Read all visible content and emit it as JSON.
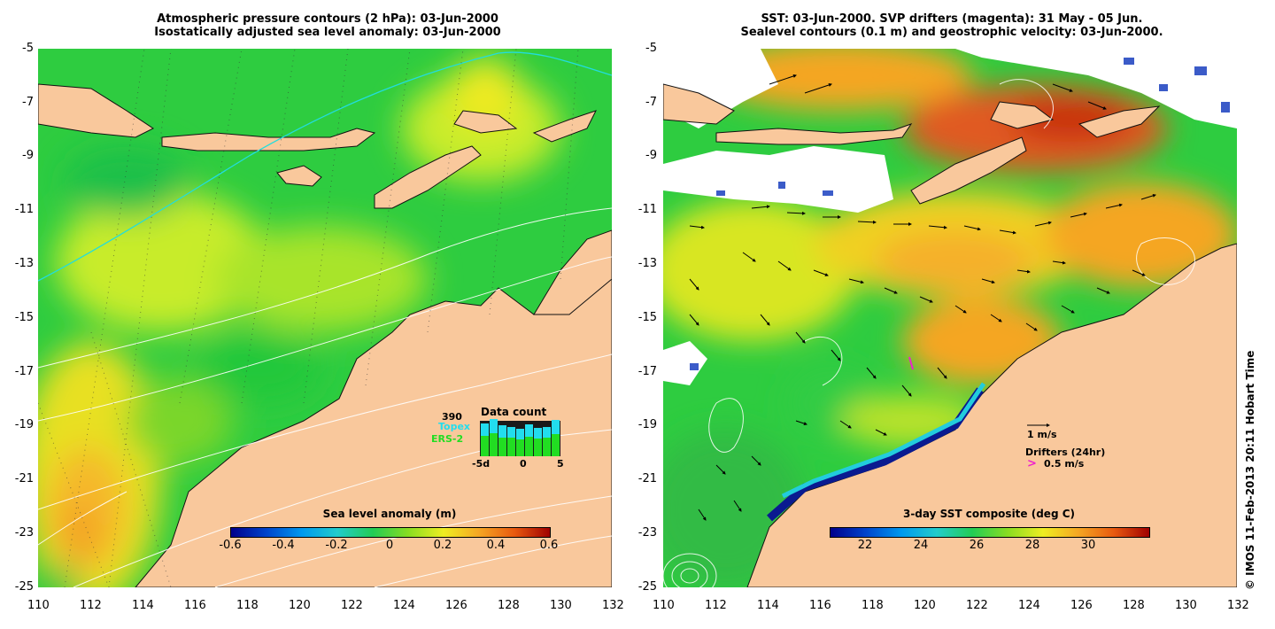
{
  "left_panel": {
    "title_line1": "Atmospheric pressure contours (2 hPa): 03-Jun-2000",
    "title_line2": "Isostatically adjusted sea level anomaly: 03-Jun-2000",
    "colorbar": {
      "title": "Sea level anomaly (m)",
      "ticks": [
        "-0.6",
        "-0.4",
        "-0.2",
        "0",
        "0.2",
        "0.4",
        "0.6"
      ]
    },
    "data_count": {
      "title": "Data count",
      "count": "390",
      "topex_label": "Topex",
      "ers_label": "ERS-2",
      "x_ticks": [
        "-5d",
        "0",
        "5"
      ],
      "topex_color": "#22ddee",
      "ers_color": "#22dd22"
    }
  },
  "right_panel": {
    "title_line1": "SST: 03-Jun-2000. SVP drifters (magenta): 31 May - 05 Jun.",
    "title_line2": "Sealevel contours (0.1 m) and geostrophic velocity: 03-Jun-2000.",
    "colorbar": {
      "title": "3-day SST composite (deg C)",
      "ticks": [
        "22",
        "24",
        "26",
        "28",
        "30"
      ]
    },
    "velocity_scale": "1 m/s",
    "drifters_label": "Drifters (24hr)",
    "drifters_scale": "0.5 m/s",
    "drifter_symbol": ">"
  },
  "axes": {
    "lat_labels": [
      "-5",
      "-7",
      "-9",
      "-11",
      "-13",
      "-15",
      "-17",
      "-19",
      "-21",
      "-23",
      "-25"
    ],
    "lon_labels": [
      "110",
      "112",
      "114",
      "116",
      "118",
      "120",
      "122",
      "124",
      "126",
      "128",
      "130",
      "132"
    ]
  },
  "copyright": "© IMOS 11-Feb-2013 20:11 Hobart Time",
  "colors": {
    "land": "#f9c89c",
    "sea_green": "#33cc33",
    "sea_yellow": "#ccee22",
    "sea_orange": "#f5a623",
    "sst_red": "#cc3300",
    "cloud": "#ffffff"
  }
}
